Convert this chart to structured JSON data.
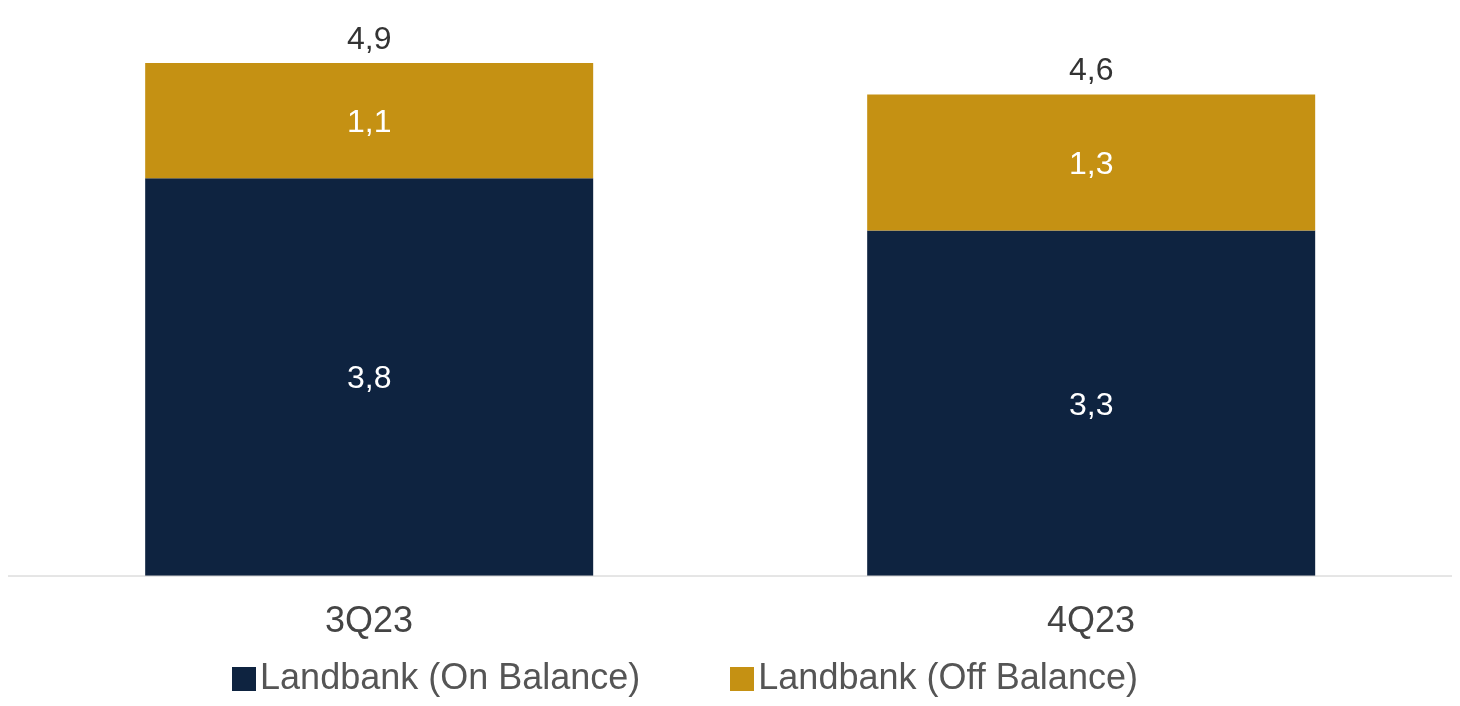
{
  "chart_data": {
    "type": "bar",
    "stacked": true,
    "categories": [
      "3Q23",
      "4Q23"
    ],
    "series": [
      {
        "name": "Landbank (On Balance)",
        "color": "#0e2340",
        "values": [
          3.8,
          3.3
        ],
        "value_labels": [
          "3,8",
          "3,3"
        ]
      },
      {
        "name": "Landbank (Off Balance)",
        "color": "#c59113",
        "values": [
          1.1,
          1.3
        ],
        "value_labels": [
          "1,1",
          "1,3"
        ]
      }
    ],
    "totals": [
      "4,9",
      "4,6"
    ],
    "legend": "bottom"
  }
}
